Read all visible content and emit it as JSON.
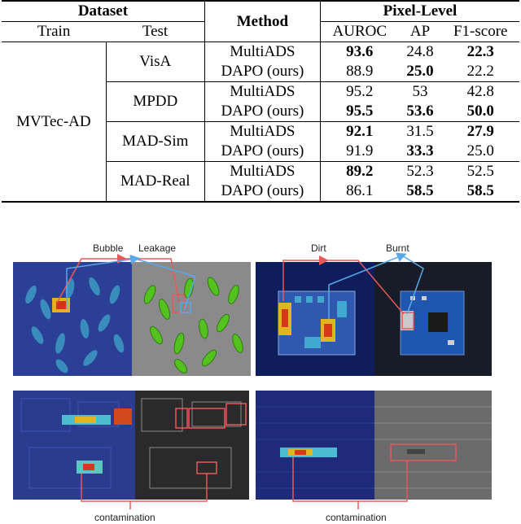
{
  "table": {
    "header": {
      "dataset": "Dataset",
      "method": "Method",
      "pixel_level": "Pixel-Level",
      "train": "Train",
      "test": "Test",
      "auroc": "AUROC",
      "ap": "AP",
      "f1": "F1-score"
    },
    "train_value": "MVTec-AD",
    "groups": [
      {
        "test": "VisA",
        "rows": [
          {
            "method": "MultiADS",
            "auroc": "93.6",
            "ap": "24.8",
            "f1": "22.3",
            "bold": [
              "auroc",
              "f1"
            ]
          },
          {
            "method": "DAPO (ours)",
            "auroc": "88.9",
            "ap": "25.0",
            "f1": "22.2",
            "bold": [
              "ap"
            ]
          }
        ]
      },
      {
        "test": "MPDD",
        "rows": [
          {
            "method": "MultiADS",
            "auroc": "95.2",
            "ap": "53",
            "f1": "42.8",
            "bold": []
          },
          {
            "method": "DAPO (ours)",
            "auroc": "95.5",
            "ap": "53.6",
            "f1": "50.0",
            "bold": [
              "auroc",
              "ap",
              "f1"
            ]
          }
        ]
      },
      {
        "test": "MAD-Sim",
        "rows": [
          {
            "method": "MultiADS",
            "auroc": "92.1",
            "ap": "31.5",
            "f1": "27.9",
            "bold": [
              "auroc",
              "f1"
            ]
          },
          {
            "method": "DAPO (ours)",
            "auroc": "91.9",
            "ap": "33.3",
            "f1": "25.0",
            "bold": [
              "ap"
            ]
          }
        ]
      },
      {
        "test": "MAD-Real",
        "rows": [
          {
            "method": "MultiADS",
            "auroc": "89.2",
            "ap": "52.3",
            "f1": "52.5",
            "bold": [
              "auroc"
            ]
          },
          {
            "method": "DAPO (ours)",
            "auroc": "86.1",
            "ap": "58.5",
            "f1": "58.5",
            "bold": [
              "ap",
              "f1"
            ]
          }
        ]
      }
    ]
  },
  "figure": {
    "labels": {
      "bubble": "Bubble",
      "leakage": "Leakage",
      "dirt": "Dirt",
      "burnt": "Burnt",
      "contamination_left": "contamination",
      "contamination_right": "contamination"
    },
    "colors": {
      "red_arrow": "#e8585a",
      "blue_arrow": "#5aa8e8",
      "heatmap_bg": "#2a3f9a",
      "capsule_green": "#4cc22a",
      "board_blue": "#1a4fa0"
    }
  }
}
